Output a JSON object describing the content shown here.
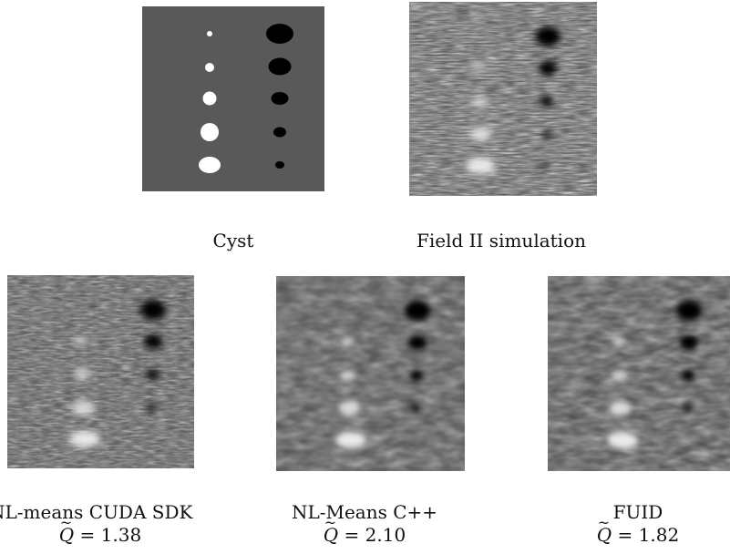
{
  "panels": [
    {
      "id": "cyst",
      "caption": "Cyst"
    },
    {
      "id": "field2",
      "caption": "Field II simulation"
    },
    {
      "id": "cuda",
      "caption": "NL-means CUDA SDK",
      "q_symbol": "Q",
      "q_eq": "= ",
      "q_value": "1.38"
    },
    {
      "id": "cpp",
      "caption": "NL-Means C++",
      "q_symbol": "Q",
      "q_eq": "= ",
      "q_value": "2.10"
    },
    {
      "id": "fuid",
      "caption": "FUID",
      "q_symbol": "Q",
      "q_eq": "= ",
      "q_value": "1.82"
    }
  ],
  "colors": {
    "phantom_bg": "#595959",
    "cyst_white": "#ffffff",
    "cyst_black": "#000000"
  }
}
